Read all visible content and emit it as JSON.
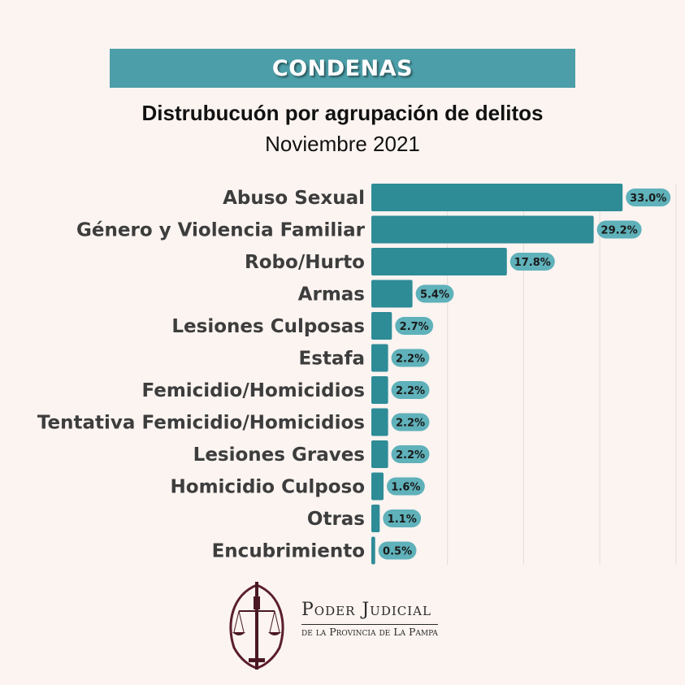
{
  "header": {
    "banner": "CONDENAS",
    "title": "Distrubucuón por agrupación de delitos",
    "subtitle": "Noviembre 2021"
  },
  "colors": {
    "background": "#fbf4f1",
    "banner": "#4c9ea8",
    "bar": "#2e8c97",
    "label_pill": "#5fb1ba",
    "logo_accent": "#5a1e2a"
  },
  "chart_data": {
    "type": "bar",
    "orientation": "horizontal",
    "title": "Distrubucuón por agrupación de delitos",
    "subtitle": "Noviembre 2021",
    "categories": [
      "Abuso Sexual",
      "Género y Violencia Familiar",
      "Robo/Hurto",
      "Armas",
      "Lesiones Culposas",
      "Estafa",
      "Femicidio/Homicidios",
      "Tentativa Femicidio/Homicidios",
      "Lesiones Graves",
      "Homicidio Culposo",
      "Otras",
      "Encubrimiento"
    ],
    "values": [
      33.0,
      29.2,
      17.8,
      5.4,
      2.7,
      2.2,
      2.2,
      2.2,
      2.2,
      1.6,
      1.1,
      0.5
    ],
    "value_labels": [
      "33.0%",
      "29.2%",
      "17.8%",
      "5.4%",
      "2.7%",
      "2.2%",
      "2.2%",
      "2.2%",
      "2.2%",
      "1.6%",
      "1.1%",
      "0.5%"
    ],
    "xlim": [
      0,
      40
    ],
    "grid": "vertical",
    "legend": "none"
  },
  "footer": {
    "logo_icon": "scales-of-justice-seal-icon",
    "org_name": "Poder Judicial",
    "org_subtitle": "de la Provincia de La Pampa"
  }
}
